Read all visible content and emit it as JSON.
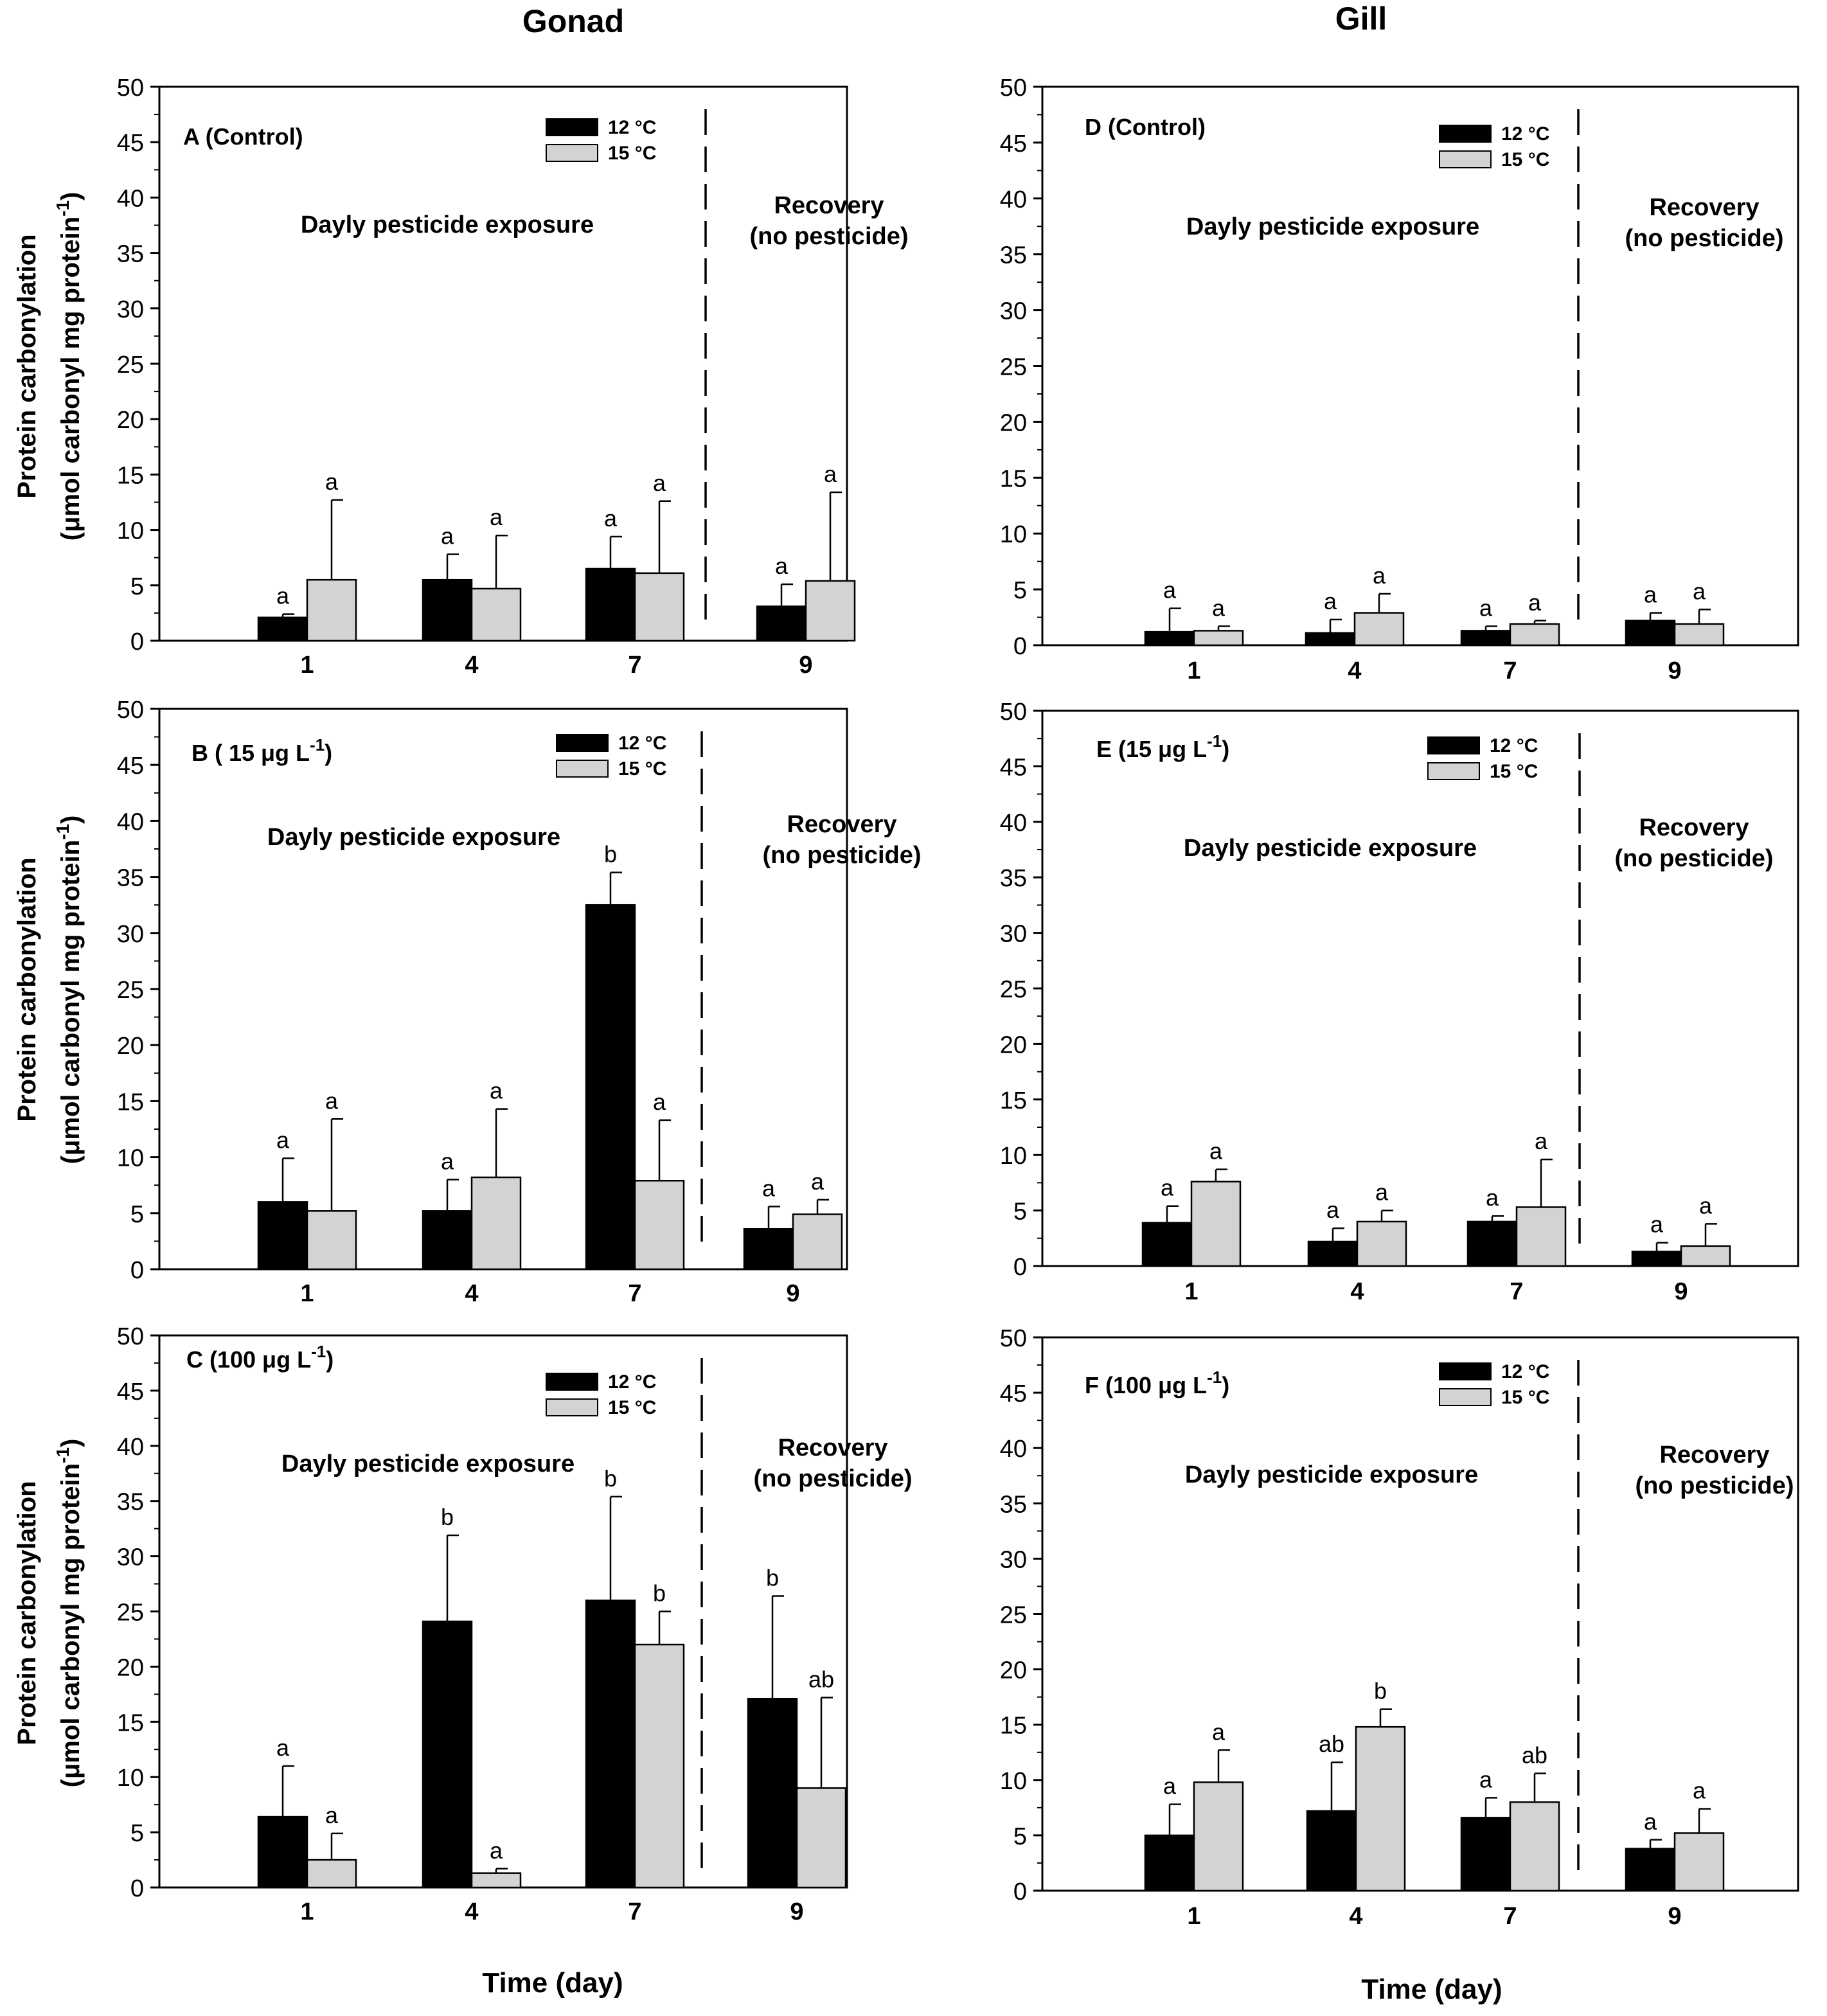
{
  "figure": {
    "col_titles": [
      "Gonad",
      "Gill"
    ],
    "ylabel_line1": "Protein carbonylation",
    "ylabel_line2_prefix": "(μmol carbonyl mg protein",
    "ylabel_sup": "-1",
    "ylabel_suffix": ")",
    "xlabel": "Time (day)",
    "colors": {
      "s12": "#000000",
      "s15": "#d3d3d3",
      "axis": "#000000"
    }
  },
  "chart_data": [
    {
      "id": "A",
      "type": "bar",
      "tissue": "Gonad",
      "panel_label": "A (Control)",
      "panel_sup": "",
      "panel_label_end": "",
      "categories": [
        "1",
        "4",
        "7",
        "9"
      ],
      "ylim": [
        0,
        50
      ],
      "yticks": [
        0,
        5,
        10,
        15,
        20,
        25,
        30,
        35,
        40,
        45,
        50
      ],
      "exposure_text": "Dayly pesticide exposure",
      "recovery_text": [
        "Recovery",
        "(no pesticide)"
      ],
      "series": [
        {
          "name": "12 °C",
          "values": [
            2.1,
            5.5,
            6.5,
            3.1
          ],
          "errors": [
            0.3,
            2.3,
            2.9,
            2.0
          ],
          "letters": [
            "a",
            "a",
            "a",
            "a"
          ]
        },
        {
          "name": "15 °C",
          "values": [
            5.5,
            4.7,
            6.1,
            5.4
          ],
          "errors": [
            7.2,
            4.8,
            6.5,
            8.0
          ],
          "letters": [
            "a",
            "a",
            "a",
            "a"
          ]
        }
      ]
    },
    {
      "id": "B",
      "type": "bar",
      "tissue": "Gonad",
      "panel_label": "B ( 15 μg L",
      "panel_sup": "-1",
      "panel_label_end": ")",
      "categories": [
        "1",
        "4",
        "7",
        "9"
      ],
      "ylim": [
        0,
        50
      ],
      "yticks": [
        0,
        5,
        10,
        15,
        20,
        25,
        30,
        35,
        40,
        45,
        50
      ],
      "exposure_text": "Dayly pesticide exposure",
      "recovery_text": [
        "Recovery",
        "(no pesticide)"
      ],
      "series": [
        {
          "name": "12 °C",
          "values": [
            6.0,
            5.2,
            32.5,
            3.6
          ],
          "errors": [
            3.9,
            2.8,
            2.9,
            2.0
          ],
          "letters": [
            "a",
            "a",
            "b",
            "a"
          ]
        },
        {
          "name": "15 °C",
          "values": [
            5.2,
            8.2,
            7.9,
            4.9
          ],
          "errors": [
            8.2,
            6.1,
            5.4,
            1.3
          ],
          "letters": [
            "a",
            "a",
            "a",
            "a"
          ]
        }
      ]
    },
    {
      "id": "C",
      "type": "bar",
      "tissue": "Gonad",
      "panel_label": "C (100 μg L",
      "panel_sup": "-1",
      "panel_label_end": ")",
      "categories": [
        "1",
        "4",
        "7",
        "9"
      ],
      "ylim": [
        0,
        50
      ],
      "yticks": [
        0,
        5,
        10,
        15,
        20,
        25,
        30,
        35,
        40,
        45,
        50
      ],
      "exposure_text": "Dayly pesticide exposure",
      "recovery_text": [
        "Recovery",
        "(no pesticide)"
      ],
      "series": [
        {
          "name": "12 °C",
          "values": [
            6.4,
            24.1,
            26.0,
            17.1
          ],
          "errors": [
            4.6,
            7.8,
            9.4,
            9.3
          ],
          "letters": [
            "a",
            "b",
            "b",
            "b"
          ]
        },
        {
          "name": "15 °C",
          "values": [
            2.5,
            1.3,
            22.0,
            9.0
          ],
          "errors": [
            2.4,
            0.4,
            3.0,
            8.2
          ],
          "letters": [
            "a",
            "a",
            "b",
            "ab"
          ]
        }
      ]
    },
    {
      "id": "D",
      "type": "bar",
      "tissue": "Gill",
      "panel_label": "D (Control)",
      "panel_sup": "",
      "panel_label_end": "",
      "categories": [
        "1",
        "4",
        "7",
        "9"
      ],
      "ylim": [
        0,
        50
      ],
      "yticks": [
        0,
        5,
        10,
        15,
        20,
        25,
        30,
        35,
        40,
        45,
        50
      ],
      "exposure_text": "Dayly pesticide exposure",
      "recovery_text": [
        "Recovery",
        "(no pesticide)"
      ],
      "series": [
        {
          "name": "12 °C",
          "values": [
            1.2,
            1.1,
            1.3,
            2.2
          ],
          "errors": [
            2.1,
            1.2,
            0.4,
            0.7
          ],
          "letters": [
            "a",
            "a",
            "a",
            "a"
          ]
        },
        {
          "name": "15 °C",
          "values": [
            1.3,
            2.9,
            1.9,
            1.9
          ],
          "errors": [
            0.4,
            1.7,
            0.3,
            1.3
          ],
          "letters": [
            "a",
            "a",
            "a",
            "a"
          ]
        }
      ]
    },
    {
      "id": "E",
      "type": "bar",
      "tissue": "Gill",
      "panel_label": "E (15 μg L",
      "panel_sup": "-1",
      "panel_label_end": ")",
      "categories": [
        "1",
        "4",
        "7",
        "9"
      ],
      "ylim": [
        0,
        50
      ],
      "yticks": [
        0,
        5,
        10,
        15,
        20,
        25,
        30,
        35,
        40,
        45,
        50
      ],
      "exposure_text": "Dayly pesticide exposure",
      "recovery_text": [
        "Recovery",
        "(no pesticide)"
      ],
      "series": [
        {
          "name": "12 °C",
          "values": [
            3.9,
            2.2,
            4.0,
            1.3
          ],
          "errors": [
            1.5,
            1.2,
            0.5,
            0.8
          ],
          "letters": [
            "a",
            "a",
            "a",
            "a"
          ]
        },
        {
          "name": "15 °C",
          "values": [
            7.6,
            4.0,
            5.3,
            1.8
          ],
          "errors": [
            1.1,
            1.0,
            4.3,
            2.0
          ],
          "letters": [
            "a",
            "a",
            "a",
            "a"
          ]
        }
      ]
    },
    {
      "id": "F",
      "type": "bar",
      "tissue": "Gill",
      "panel_label": "F (100 μg L",
      "panel_sup": "-1",
      "panel_label_end": ")",
      "categories": [
        "1",
        "4",
        "7",
        "9"
      ],
      "ylim": [
        0,
        50
      ],
      "yticks": [
        0,
        5,
        10,
        15,
        20,
        25,
        30,
        35,
        40,
        45,
        50
      ],
      "exposure_text": "Dayly pesticide exposure",
      "recovery_text": [
        "Recovery",
        "(no pesticide)"
      ],
      "series": [
        {
          "name": "12 °C",
          "values": [
            5.0,
            7.2,
            6.6,
            3.8
          ],
          "errors": [
            2.8,
            4.4,
            1.8,
            0.8
          ],
          "letters": [
            "a",
            "ab",
            "a",
            "a"
          ]
        },
        {
          "name": "15 °C",
          "values": [
            9.8,
            14.8,
            8.0,
            5.2
          ],
          "errors": [
            2.9,
            1.6,
            2.6,
            2.2
          ],
          "letters": [
            "a",
            "b",
            "ab",
            "a"
          ]
        }
      ]
    }
  ]
}
